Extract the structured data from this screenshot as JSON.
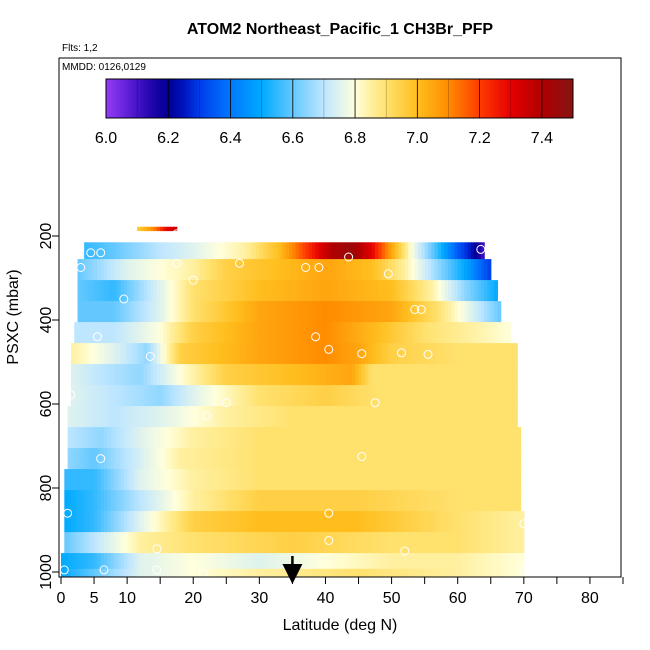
{
  "chart_data": {
    "type": "heatmap",
    "title": "ATOM2 Northeast_Pacific_1 CH3Br_PFP",
    "flights_label": "Flts: 1,2",
    "mmdd_label": "MMDD: 0126,0129",
    "xlabel": "Latitude (deg N)",
    "ylabel": "PSXC (mbar)",
    "xlim": [
      0,
      85
    ],
    "ylim": [
      1010,
      40
    ],
    "x_ticks": [
      0,
      5,
      10,
      20,
      30,
      40,
      50,
      60,
      70,
      80
    ],
    "x_tick_labels": [
      "0",
      "5",
      "10",
      "20",
      "30",
      "40",
      "50",
      "60",
      "70",
      "80"
    ],
    "y_ticks": [
      200,
      400,
      600,
      800,
      1000
    ],
    "y_tick_labels": [
      "200",
      "400",
      "600",
      "800",
      "1000"
    ],
    "colorbar": {
      "min": 6.0,
      "max": 7.5,
      "ticks": [
        6.0,
        6.2,
        6.4,
        6.6,
        6.8,
        7.0,
        7.2,
        7.4
      ],
      "tick_labels": [
        "6.0",
        "6.2",
        "6.4",
        "6.6",
        "6.8",
        "7.0",
        "7.2",
        "7.4"
      ]
    },
    "arrow_latitude": 35,
    "profile_rows": [
      {
        "p": 200,
        "lat_start": 11.5,
        "lat_end": 17.5,
        "nodes": [
          [
            11.5,
            6.95
          ],
          [
            14,
            7.1
          ],
          [
            16,
            7.3
          ],
          [
            17.5,
            7.35
          ]
        ]
      },
      {
        "p": 230,
        "lat_start": 3.5,
        "lat_end": 64,
        "nodes": [
          [
            3.5,
            6.55
          ],
          [
            8,
            6.6
          ],
          [
            15,
            6.7
          ],
          [
            20,
            6.75
          ],
          [
            28,
            6.85
          ],
          [
            33,
            7.0
          ],
          [
            37,
            7.2
          ],
          [
            41,
            7.4
          ],
          [
            44,
            7.45
          ],
          [
            47,
            7.3
          ],
          [
            50,
            7.05
          ],
          [
            53,
            6.8
          ],
          [
            57,
            6.55
          ],
          [
            60,
            6.35
          ],
          [
            62,
            6.25
          ],
          [
            64,
            6.1
          ]
        ]
      },
      {
        "p": 280,
        "lat_start": 2.5,
        "lat_end": 65,
        "nodes": [
          [
            2.5,
            6.6
          ],
          [
            10,
            6.75
          ],
          [
            20,
            6.85
          ],
          [
            25,
            6.95
          ],
          [
            33,
            7.0
          ],
          [
            40,
            7.05
          ],
          [
            47,
            7.0
          ],
          [
            52,
            6.85
          ],
          [
            57,
            6.65
          ],
          [
            61,
            6.5
          ],
          [
            65,
            6.3
          ]
        ]
      },
      {
        "p": 330,
        "lat_start": 2.5,
        "lat_end": 66,
        "nodes": [
          [
            2.5,
            6.6
          ],
          [
            8,
            6.55
          ],
          [
            15,
            6.75
          ],
          [
            20,
            6.9
          ],
          [
            30,
            7.0
          ],
          [
            40,
            7.05
          ],
          [
            50,
            7.0
          ],
          [
            56,
            6.85
          ],
          [
            61,
            6.65
          ],
          [
            66,
            6.5
          ]
        ]
      },
      {
        "p": 380,
        "lat_start": 2.5,
        "lat_end": 66.5,
        "nodes": [
          [
            2.5,
            6.6
          ],
          [
            8,
            6.6
          ],
          [
            15,
            6.75
          ],
          [
            20,
            6.9
          ],
          [
            30,
            7.05
          ],
          [
            40,
            7.1
          ],
          [
            50,
            7.05
          ],
          [
            57,
            6.9
          ],
          [
            62,
            6.75
          ],
          [
            66.5,
            6.6
          ]
        ]
      },
      {
        "p": 430,
        "lat_start": 2,
        "lat_end": 68,
        "nodes": [
          [
            2,
            6.7
          ],
          [
            8,
            6.7
          ],
          [
            15,
            6.8
          ],
          [
            20,
            6.95
          ],
          [
            30,
            7.05
          ],
          [
            40,
            7.1
          ],
          [
            48,
            7.0
          ],
          [
            55,
            6.9
          ],
          [
            62,
            6.85
          ],
          [
            68,
            6.8
          ]
        ]
      },
      {
        "p": 480,
        "lat_start": 1.5,
        "lat_end": 69,
        "nodes": [
          [
            1.5,
            6.85
          ],
          [
            8,
            6.75
          ],
          [
            13,
            6.65
          ],
          [
            18,
            6.95
          ],
          [
            30,
            7.05
          ],
          [
            40,
            7.1
          ],
          [
            45,
            7.05
          ],
          [
            50,
            6.95
          ],
          [
            60,
            6.9
          ],
          [
            69,
            6.9
          ]
        ]
      },
      {
        "p": 530,
        "lat_start": 1.5,
        "lat_end": 69,
        "nodes": [
          [
            1.5,
            6.75
          ],
          [
            6,
            6.7
          ],
          [
            12,
            6.65
          ],
          [
            18,
            6.8
          ],
          [
            25,
            6.95
          ],
          [
            35,
            7.0
          ],
          [
            44,
            7.05
          ],
          [
            47,
            6.9
          ],
          [
            55,
            6.9
          ],
          [
            69,
            6.9
          ]
        ]
      },
      {
        "p": 580,
        "lat_start": 1.5,
        "lat_end": 69,
        "nodes": [
          [
            1.5,
            6.75
          ],
          [
            8,
            6.7
          ],
          [
            15,
            6.65
          ],
          [
            20,
            6.75
          ],
          [
            30,
            6.9
          ],
          [
            40,
            6.95
          ],
          [
            48,
            6.9
          ],
          [
            60,
            6.9
          ],
          [
            69,
            6.9
          ]
        ]
      },
      {
        "p": 630,
        "lat_start": 1,
        "lat_end": 69,
        "nodes": [
          [
            1,
            6.75
          ],
          [
            8,
            6.7
          ],
          [
            15,
            6.75
          ],
          [
            25,
            6.85
          ],
          [
            35,
            6.9
          ],
          [
            45,
            6.9
          ],
          [
            60,
            6.9
          ],
          [
            69,
            6.9
          ]
        ]
      },
      {
        "p": 680,
        "lat_start": 1,
        "lat_end": 69.5,
        "nodes": [
          [
            1,
            6.7
          ],
          [
            6,
            6.65
          ],
          [
            12,
            6.75
          ],
          [
            20,
            6.85
          ],
          [
            30,
            6.9
          ],
          [
            45,
            6.9
          ],
          [
            60,
            6.9
          ],
          [
            69.5,
            6.9
          ]
        ]
      },
      {
        "p": 730,
        "lat_start": 1,
        "lat_end": 69.5,
        "nodes": [
          [
            1,
            6.65
          ],
          [
            5,
            6.6
          ],
          [
            10,
            6.7
          ],
          [
            18,
            6.85
          ],
          [
            30,
            6.9
          ],
          [
            45,
            6.9
          ],
          [
            60,
            6.9
          ],
          [
            69.5,
            6.9
          ]
        ]
      },
      {
        "p": 780,
        "lat_start": 0.5,
        "lat_end": 69.5,
        "nodes": [
          [
            0.5,
            6.55
          ],
          [
            5,
            6.55
          ],
          [
            12,
            6.75
          ],
          [
            20,
            6.85
          ],
          [
            30,
            6.9
          ],
          [
            45,
            6.9
          ],
          [
            60,
            6.9
          ],
          [
            69.5,
            6.9
          ]
        ]
      },
      {
        "p": 830,
        "lat_start": 0.5,
        "lat_end": 69.5,
        "nodes": [
          [
            0.5,
            6.5
          ],
          [
            5,
            6.55
          ],
          [
            12,
            6.7
          ],
          [
            20,
            6.85
          ],
          [
            30,
            6.95
          ],
          [
            45,
            6.95
          ],
          [
            60,
            6.9
          ],
          [
            69.5,
            6.9
          ]
        ]
      },
      {
        "p": 880,
        "lat_start": 0.5,
        "lat_end": 70,
        "nodes": [
          [
            0.5,
            6.5
          ],
          [
            5,
            6.55
          ],
          [
            12,
            6.75
          ],
          [
            20,
            6.95
          ],
          [
            30,
            7.0
          ],
          [
            45,
            7.0
          ],
          [
            60,
            6.9
          ],
          [
            70,
            6.85
          ]
        ]
      },
      {
        "p": 930,
        "lat_start": 0.5,
        "lat_end": 70,
        "nodes": [
          [
            0.5,
            6.6
          ],
          [
            5,
            6.7
          ],
          [
            12,
            6.85
          ],
          [
            20,
            6.9
          ],
          [
            35,
            6.95
          ],
          [
            50,
            6.9
          ],
          [
            60,
            6.9
          ],
          [
            70,
            6.85
          ]
        ]
      },
      {
        "p": 980,
        "lat_start": 0,
        "lat_end": 70,
        "nodes": [
          [
            0,
            6.5
          ],
          [
            5,
            6.55
          ],
          [
            12,
            6.75
          ],
          [
            20,
            6.8
          ],
          [
            30,
            6.75
          ],
          [
            40,
            6.8
          ],
          [
            50,
            6.85
          ],
          [
            60,
            6.85
          ],
          [
            70,
            6.8
          ]
        ]
      },
      {
        "p": 1005,
        "lat_start": 0,
        "lat_end": 70,
        "nodes": [
          [
            0,
            6.5
          ],
          [
            5,
            6.6
          ],
          [
            12,
            6.75
          ],
          [
            20,
            6.8
          ],
          [
            30,
            6.85
          ],
          [
            45,
            6.9
          ],
          [
            60,
            6.85
          ],
          [
            70,
            6.8
          ]
        ]
      }
    ],
    "sample_points": [
      {
        "lat": 17.5,
        "p": 195
      },
      {
        "lat": 4.5,
        "p": 240
      },
      {
        "lat": 6,
        "p": 240
      },
      {
        "lat": 43.5,
        "p": 250
      },
      {
        "lat": 63.5,
        "p": 232
      },
      {
        "lat": 3,
        "p": 275
      },
      {
        "lat": 17.5,
        "p": 265
      },
      {
        "lat": 27,
        "p": 265
      },
      {
        "lat": 37,
        "p": 275
      },
      {
        "lat": 39,
        "p": 275
      },
      {
        "lat": 49.5,
        "p": 290
      },
      {
        "lat": 20,
        "p": 305
      },
      {
        "lat": 9.5,
        "p": 350
      },
      {
        "lat": 53.5,
        "p": 375
      },
      {
        "lat": 54.5,
        "p": 375
      },
      {
        "lat": 5.5,
        "p": 440
      },
      {
        "lat": 38.5,
        "p": 440
      },
      {
        "lat": 40.5,
        "p": 470
      },
      {
        "lat": 13.5,
        "p": 487
      },
      {
        "lat": 45.5,
        "p": 480
      },
      {
        "lat": 51.5,
        "p": 478
      },
      {
        "lat": 55.5,
        "p": 482
      },
      {
        "lat": 1.5,
        "p": 578
      },
      {
        "lat": 25,
        "p": 597
      },
      {
        "lat": 47.5,
        "p": 597
      },
      {
        "lat": 22,
        "p": 628
      },
      {
        "lat": 45.5,
        "p": 725
      },
      {
        "lat": 6,
        "p": 730
      },
      {
        "lat": 1,
        "p": 860
      },
      {
        "lat": 40.5,
        "p": 860
      },
      {
        "lat": 70,
        "p": 885
      },
      {
        "lat": 40.5,
        "p": 925
      },
      {
        "lat": 14.5,
        "p": 945
      },
      {
        "lat": 52,
        "p": 950
      },
      {
        "lat": 0.5,
        "p": 995
      },
      {
        "lat": 6.5,
        "p": 995
      },
      {
        "lat": 14.5,
        "p": 995
      },
      {
        "lat": 21.5,
        "p": 1003
      },
      {
        "lat": 70,
        "p": 997
      }
    ]
  }
}
